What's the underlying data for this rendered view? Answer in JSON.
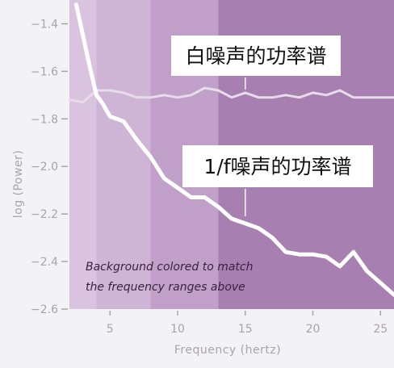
{
  "chart_data": {
    "type": "line",
    "title": "",
    "xlabel": "Frequency (hertz)",
    "ylabel": "log (Power)",
    "xlim": [
      2,
      26
    ],
    "ylim": [
      -2.6,
      -1.3
    ],
    "x_ticks": [
      5,
      10,
      15,
      20,
      25
    ],
    "y_ticks": [
      -1.4,
      -1.6,
      -1.8,
      -2.0,
      -2.2,
      -2.4,
      -2.6
    ],
    "grid": false,
    "background_bands": [
      {
        "from": 2,
        "to": 4,
        "color": "#d9c3de"
      },
      {
        "from": 4,
        "to": 8,
        "color": "#ceb4d5"
      },
      {
        "from": 8,
        "to": 13,
        "color": "#c0a0c8"
      },
      {
        "from": 13,
        "to": 26,
        "color": "#a77fb1"
      }
    ],
    "series": [
      {
        "key": "white_noise",
        "color": "#e7dcea",
        "x": [
          2,
          3,
          4,
          5,
          6,
          7,
          8,
          9,
          10,
          11,
          12,
          13,
          14,
          15,
          16,
          17,
          18,
          19,
          20,
          21,
          22,
          23,
          24,
          25,
          26
        ],
        "y": [
          -1.72,
          -1.73,
          -1.68,
          -1.68,
          -1.69,
          -1.71,
          -1.71,
          -1.7,
          -1.71,
          -1.7,
          -1.67,
          -1.68,
          -1.71,
          -1.69,
          -1.71,
          -1.71,
          -1.7,
          -1.71,
          -1.69,
          -1.7,
          -1.68,
          -1.71,
          -1.71,
          -1.71,
          -1.71
        ]
      },
      {
        "key": "pink_noise",
        "color": "#ffffff",
        "x": [
          2.5,
          3,
          3.5,
          4,
          4.5,
          5,
          6,
          7,
          8,
          9,
          10,
          11,
          12,
          13,
          14,
          15,
          16,
          17,
          18,
          19,
          20,
          21,
          22,
          23,
          24,
          25,
          26
        ],
        "y": [
          -1.32,
          -1.45,
          -1.58,
          -1.7,
          -1.74,
          -1.79,
          -1.81,
          -1.89,
          -1.96,
          -2.05,
          -2.09,
          -2.13,
          -2.13,
          -2.17,
          -2.22,
          -2.24,
          -2.26,
          -2.3,
          -2.36,
          -2.37,
          -2.37,
          -2.38,
          -2.42,
          -2.36,
          -2.44,
          -2.49,
          -2.54
        ]
      }
    ],
    "annotations": [
      {
        "key": "white",
        "text": "白噪声的功率谱",
        "target_x": 15,
        "target_y": -1.69
      },
      {
        "key": "pink",
        "text": "1/f噪声的功率谱",
        "target_x": 15,
        "target_y": -2.23
      }
    ],
    "note": {
      "line1": "Background colored to match",
      "line2": "the frequency ranges above"
    }
  }
}
